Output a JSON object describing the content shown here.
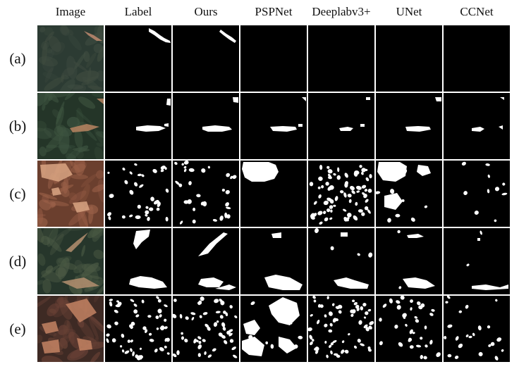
{
  "figure": {
    "columns": [
      "Image",
      "Label",
      "Ours",
      "PSPNet",
      "Deeplabv3+",
      "UNet",
      "CCNet"
    ],
    "rows": [
      "(a)",
      "(b)",
      "(c)",
      "(d)",
      "(e)"
    ],
    "colors": {
      "background": "#ffffff",
      "mask_background": "#000000",
      "mask_foreground": "#ffffff",
      "row_tones": [
        [
          "#2c3b33",
          "#3f4c40",
          "#c08a70"
        ],
        [
          "#243528",
          "#3d5440",
          "#b98562"
        ],
        [
          "#6b3f2e",
          "#9a6048",
          "#d9a582"
        ],
        [
          "#26362b",
          "#4b5a44",
          "#b48f70"
        ],
        [
          "#3e2a24",
          "#6a4236",
          "#c38363"
        ]
      ]
    }
  }
}
